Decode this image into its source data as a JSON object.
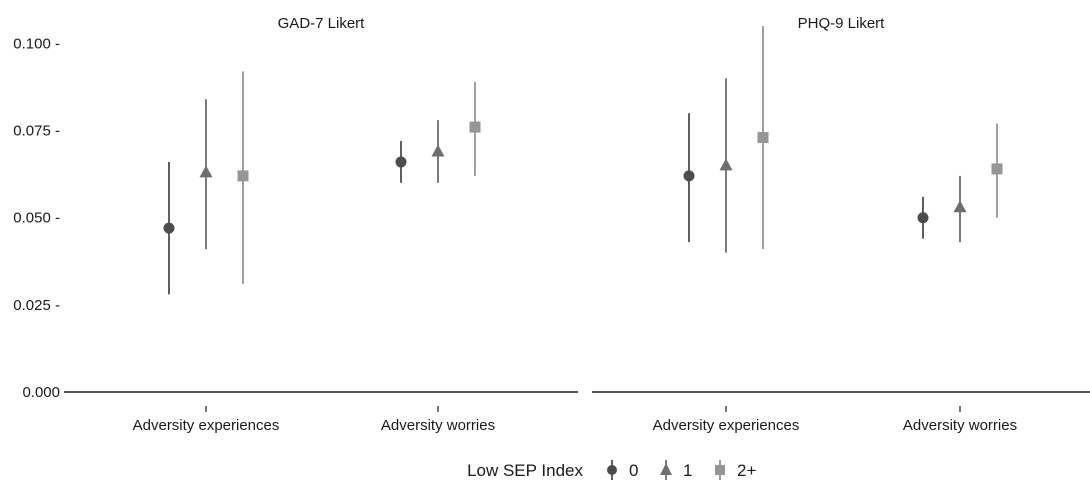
{
  "chart_data": {
    "type": "scatter",
    "subtype": "point-range",
    "ylim": [
      0,
      0.105
    ],
    "yticks": [
      {
        "value": 0.0,
        "label": "0.000"
      },
      {
        "value": 0.025,
        "label": "0.025 -"
      },
      {
        "value": 0.05,
        "label": "0.050 -"
      },
      {
        "value": 0.075,
        "label": "0.075 -"
      },
      {
        "value": 0.1,
        "label": "0.100 -"
      }
    ],
    "grid": false,
    "legend": {
      "title": "Low SEP Index",
      "position": "bottom",
      "entries": [
        {
          "label": "0",
          "shape": "circle",
          "color": "#4d4d4d"
        },
        {
          "label": "1",
          "shape": "triangle",
          "color": "#6e6e6e"
        },
        {
          "label": "2+",
          "shape": "square",
          "color": "#969696"
        }
      ]
    },
    "panels": [
      {
        "title": "GAD-7 Likert",
        "categories": [
          "Adversity experiences",
          "Adversity worries"
        ],
        "series": [
          {
            "name": "0",
            "estimate": [
              0.047,
              0.066
            ],
            "lower": [
              0.028,
              0.06
            ],
            "upper": [
              0.066,
              0.072
            ]
          },
          {
            "name": "1",
            "estimate": [
              0.063,
              0.069
            ],
            "lower": [
              0.041,
              0.06
            ],
            "upper": [
              0.084,
              0.078
            ]
          },
          {
            "name": "2+",
            "estimate": [
              0.062,
              0.076
            ],
            "lower": [
              0.031,
              0.062
            ],
            "upper": [
              0.092,
              0.089
            ]
          }
        ]
      },
      {
        "title": "PHQ-9 Likert",
        "categories": [
          "Adversity experiences",
          "Adversity worries"
        ],
        "series": [
          {
            "name": "0",
            "estimate": [
              0.062,
              0.05
            ],
            "lower": [
              0.043,
              0.044
            ],
            "upper": [
              0.08,
              0.056
            ]
          },
          {
            "name": "1",
            "estimate": [
              0.065,
              0.053
            ],
            "lower": [
              0.04,
              0.043
            ],
            "upper": [
              0.09,
              0.062
            ]
          },
          {
            "name": "2+",
            "estimate": [
              0.073,
              0.064
            ],
            "lower": [
              0.041,
              0.05
            ],
            "upper": [
              0.105,
              0.077
            ]
          }
        ]
      }
    ]
  }
}
